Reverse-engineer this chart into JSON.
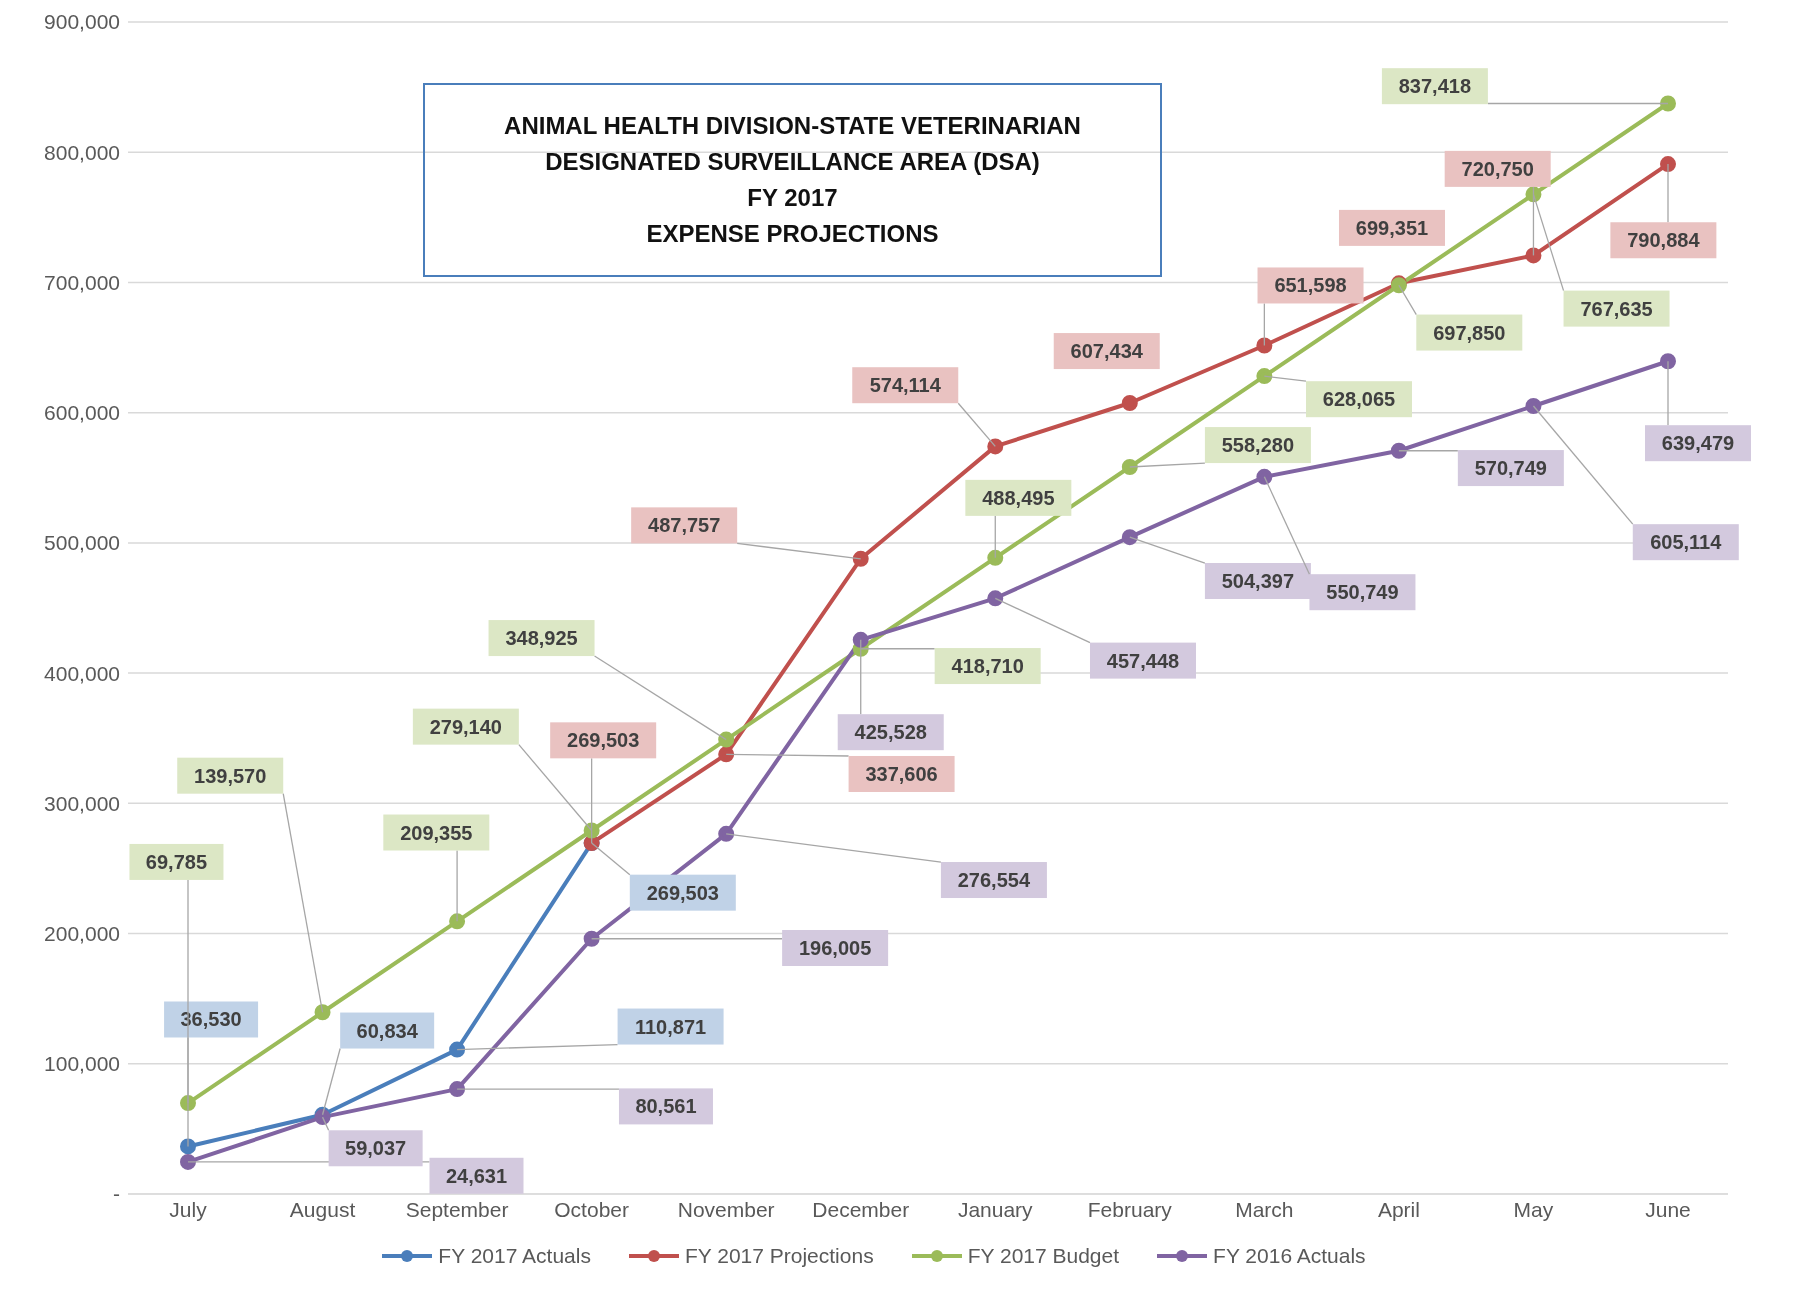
{
  "chart_data": {
    "type": "line",
    "title": "ANIMAL HEALTH DIVISION-STATE VETERINARIAN\nDESIGNATED SURVEILLANCE AREA (DSA)\nFY 2017\nEXPENSE PROJECTIONS",
    "categories": [
      "July",
      "August",
      "September",
      "October",
      "November",
      "December",
      "January",
      "February",
      "March",
      "April",
      "May",
      "June"
    ],
    "series": [
      {
        "name": "FY 2017 Actuals",
        "color": "#4a7ebb",
        "values": [
          36530,
          60834,
          110871,
          269503,
          null,
          null,
          null,
          null,
          null,
          null,
          null,
          null
        ],
        "value_labels": [
          "36,530",
          "60,834",
          "110,871",
          "269,503",
          null,
          null,
          null,
          null,
          null,
          null,
          null,
          null
        ]
      },
      {
        "name": "FY 2017 Projections",
        "color": "#c0504d",
        "values": [
          null,
          null,
          null,
          269503,
          337606,
          487757,
          574114,
          607434,
          651598,
          699351,
          720750,
          790884
        ],
        "value_labels": [
          null,
          null,
          null,
          "269,503",
          "337,606",
          "487,757",
          "574,114",
          "607,434",
          "651,598",
          "699,351",
          "720,750",
          "790,884"
        ]
      },
      {
        "name": "FY 2017 Budget",
        "color": "#9bbb59",
        "values": [
          69785,
          139570,
          209355,
          279140,
          348925,
          418710,
          488495,
          558280,
          628065,
          697850,
          767635,
          837418
        ],
        "value_labels": [
          "69,785",
          "139,570",
          "209,355",
          "279,140",
          "348,925",
          "418,710",
          "488,495",
          "558,280",
          "628,065",
          "697,850",
          "767,635",
          "837,418"
        ]
      },
      {
        "name": "FY 2016 Actuals",
        "color": "#8064a2",
        "values": [
          24631,
          59037,
          80561,
          196005,
          276554,
          425528,
          457448,
          504397,
          550749,
          570749,
          605114,
          639479
        ],
        "value_labels": [
          "24,631",
          "59,037",
          "80,561",
          "196,005",
          "276,554",
          "425,528",
          "457,448",
          "504,397",
          "550,749",
          "570,749",
          "605,114",
          "639,479"
        ]
      }
    ],
    "ylim": [
      0,
      900000
    ],
    "yticks": [
      {
        "value": 0,
        "label": "-"
      },
      {
        "value": 100000,
        "label": "100,000"
      },
      {
        "value": 200000,
        "label": "200,000"
      },
      {
        "value": 300000,
        "label": "300,000"
      },
      {
        "value": 400000,
        "label": "400,000"
      },
      {
        "value": 500000,
        "label": "500,000"
      },
      {
        "value": 600000,
        "label": "600,000"
      },
      {
        "value": 700000,
        "label": "700,000"
      },
      {
        "value": 800000,
        "label": "800,000"
      },
      {
        "value": 900000,
        "label": "900,000"
      }
    ],
    "grid": "y",
    "legend": "bottom",
    "marker": "circle",
    "line_style": "solid"
  }
}
